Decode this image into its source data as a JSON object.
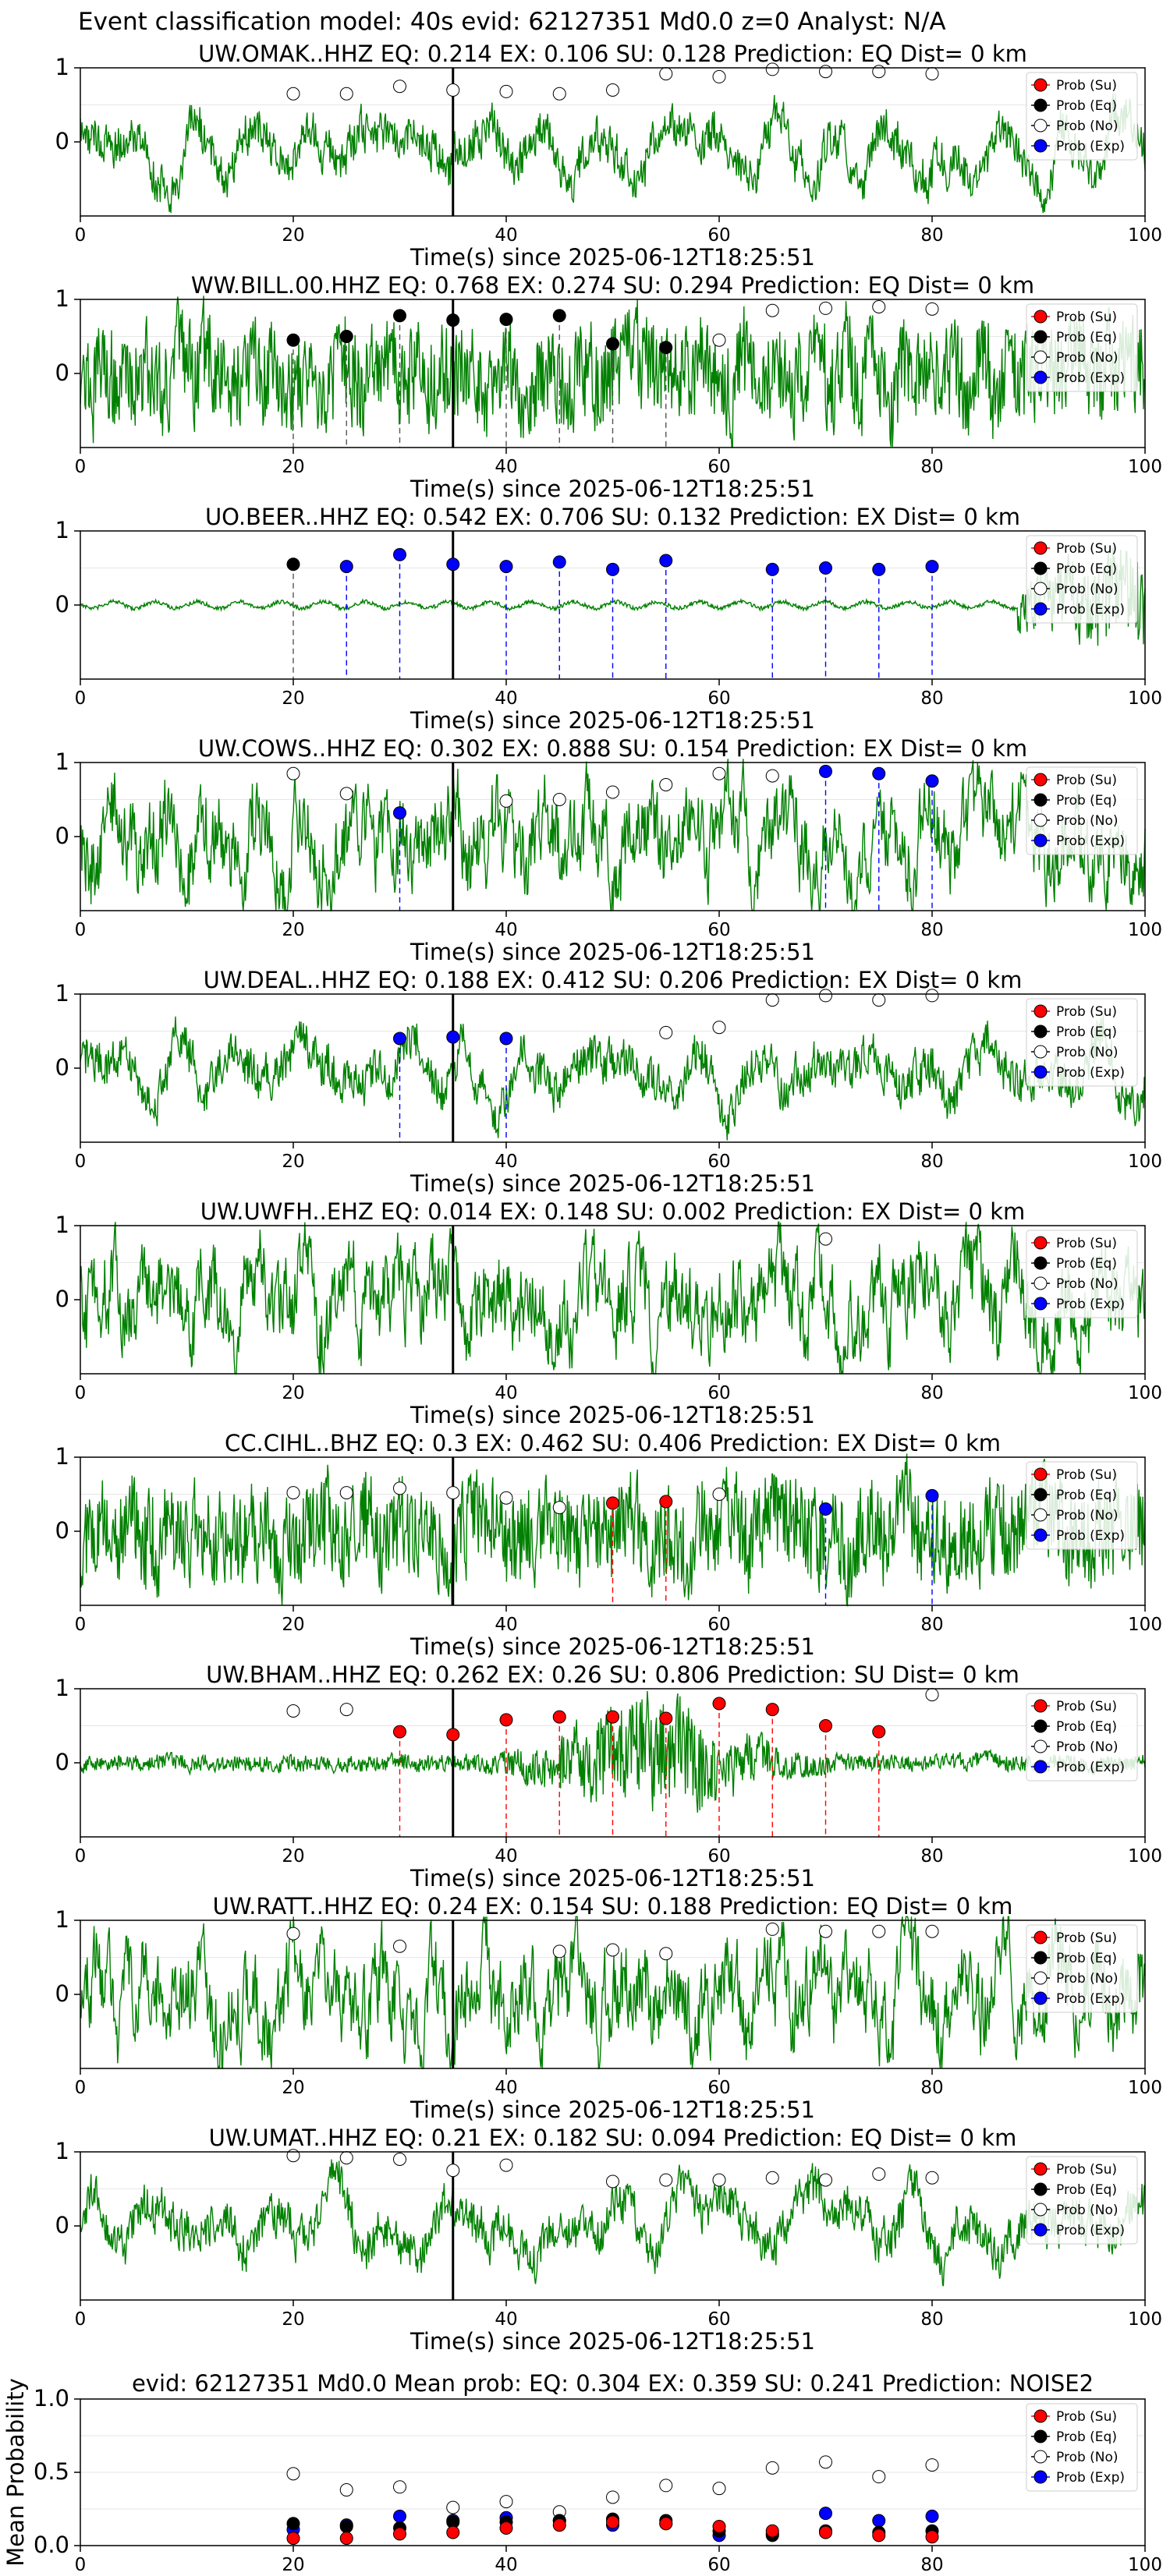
{
  "suptitle": "Event classification model: 40s evid: 62127351 Md0.0 z=0 Analyst: N/A",
  "colors": {
    "wave": "#008000",
    "su": "#ff0000",
    "eq": "#000000",
    "no": "#ffffff",
    "exp": "#0000ff",
    "pick": "#000000"
  },
  "legend_labels": [
    "Prob (Su)",
    "Prob (Eq)",
    "Prob (No)",
    "Prob (Exp)"
  ],
  "chart_data": [
    {
      "type": "line",
      "title": "UW.OMAK..HHZ   EQ: 0.214  EX: 0.106  SU: 0.128   Prediction: EQ    Dist= 0 km",
      "xlabel": "Time(s) since 2025-06-12T18:25:51",
      "xlim": [
        0,
        100
      ],
      "ylim": [
        -1,
        1
      ],
      "yticks": [
        "1",
        "0"
      ],
      "xticks": [
        "0",
        "20",
        "40",
        "60",
        "80",
        "100"
      ],
      "pick_time": 35,
      "amp_style": "lowfreq",
      "prob_points": [
        {
          "x": 20,
          "y": 0.65,
          "cls": "no"
        },
        {
          "x": 25,
          "y": 0.65,
          "cls": "no"
        },
        {
          "x": 30,
          "y": 0.75,
          "cls": "no"
        },
        {
          "x": 35,
          "y": 0.7,
          "cls": "no"
        },
        {
          "x": 40,
          "y": 0.68,
          "cls": "no"
        },
        {
          "x": 45,
          "y": 0.65,
          "cls": "no"
        },
        {
          "x": 50,
          "y": 0.7,
          "cls": "no"
        },
        {
          "x": 55,
          "y": 0.92,
          "cls": "no"
        },
        {
          "x": 60,
          "y": 0.88,
          "cls": "no"
        },
        {
          "x": 65,
          "y": 0.98,
          "cls": "no"
        },
        {
          "x": 70,
          "y": 0.95,
          "cls": "no"
        },
        {
          "x": 75,
          "y": 0.95,
          "cls": "no"
        },
        {
          "x": 80,
          "y": 0.92,
          "cls": "no"
        }
      ]
    },
    {
      "type": "line",
      "title": "WW.BILL.00.HHZ   EQ: 0.768  EX: 0.274  SU: 0.294   Prediction: EQ    Dist= 0 km",
      "xlabel": "Time(s) since 2025-06-12T18:25:51",
      "xlim": [
        0,
        100
      ],
      "ylim": [
        -1,
        1
      ],
      "yticks": [
        "1",
        "0"
      ],
      "xticks": [
        "0",
        "20",
        "40",
        "60",
        "80",
        "100"
      ],
      "pick_time": 35,
      "amp_style": "noisy",
      "prob_points": [
        {
          "x": 20,
          "y": 0.45,
          "cls": "eq"
        },
        {
          "x": 25,
          "y": 0.5,
          "cls": "eq"
        },
        {
          "x": 30,
          "y": 0.78,
          "cls": "eq"
        },
        {
          "x": 35,
          "y": 0.72,
          "cls": "eq"
        },
        {
          "x": 40,
          "y": 0.73,
          "cls": "eq"
        },
        {
          "x": 45,
          "y": 0.78,
          "cls": "eq"
        },
        {
          "x": 50,
          "y": 0.4,
          "cls": "eq"
        },
        {
          "x": 55,
          "y": 0.35,
          "cls": "eq"
        },
        {
          "x": 60,
          "y": 0.45,
          "cls": "no"
        },
        {
          "x": 65,
          "y": 0.85,
          "cls": "no"
        },
        {
          "x": 70,
          "y": 0.88,
          "cls": "no"
        },
        {
          "x": 75,
          "y": 0.9,
          "cls": "no"
        },
        {
          "x": 80,
          "y": 0.87,
          "cls": "no"
        }
      ]
    },
    {
      "type": "line",
      "title": "UO.BEER..HHZ   EQ: 0.542  EX: 0.706  SU: 0.132   Prediction: EX    Dist= 0 km",
      "xlabel": "Time(s) since 2025-06-12T18:25:51",
      "xlim": [
        0,
        100
      ],
      "ylim": [
        -1,
        1
      ],
      "yticks": [
        "1",
        "0"
      ],
      "xticks": [
        "0",
        "20",
        "40",
        "60",
        "80",
        "100"
      ],
      "pick_time": 35,
      "amp_style": "quiet",
      "prob_points": [
        {
          "x": 20,
          "y": 0.55,
          "cls": "eq"
        },
        {
          "x": 25,
          "y": 0.52,
          "cls": "exp"
        },
        {
          "x": 30,
          "y": 0.68,
          "cls": "exp"
        },
        {
          "x": 35,
          "y": 0.55,
          "cls": "exp"
        },
        {
          "x": 40,
          "y": 0.52,
          "cls": "exp"
        },
        {
          "x": 45,
          "y": 0.58,
          "cls": "exp"
        },
        {
          "x": 50,
          "y": 0.48,
          "cls": "exp"
        },
        {
          "x": 55,
          "y": 0.6,
          "cls": "exp"
        },
        {
          "x": 65,
          "y": 0.48,
          "cls": "exp"
        },
        {
          "x": 70,
          "y": 0.5,
          "cls": "exp"
        },
        {
          "x": 75,
          "y": 0.48,
          "cls": "exp"
        },
        {
          "x": 80,
          "y": 0.52,
          "cls": "exp"
        }
      ]
    },
    {
      "type": "line",
      "title": "UW.COWS..HHZ   EQ: 0.302  EX: 0.888  SU: 0.154   Prediction: EX    Dist= 0 km",
      "xlabel": "Time(s) since 2025-06-12T18:25:51",
      "xlim": [
        0,
        100
      ],
      "ylim": [
        -1,
        1
      ],
      "yticks": [
        "1",
        "0"
      ],
      "xticks": [
        "0",
        "20",
        "40",
        "60",
        "80",
        "100"
      ],
      "pick_time": 35,
      "amp_style": "medium",
      "prob_points": [
        {
          "x": 20,
          "y": 0.85,
          "cls": "no"
        },
        {
          "x": 25,
          "y": 0.58,
          "cls": "no"
        },
        {
          "x": 30,
          "y": 0.32,
          "cls": "exp"
        },
        {
          "x": 40,
          "y": 0.48,
          "cls": "no"
        },
        {
          "x": 45,
          "y": 0.5,
          "cls": "no"
        },
        {
          "x": 50,
          "y": 0.6,
          "cls": "no"
        },
        {
          "x": 55,
          "y": 0.7,
          "cls": "no"
        },
        {
          "x": 60,
          "y": 0.85,
          "cls": "no"
        },
        {
          "x": 65,
          "y": 0.82,
          "cls": "no"
        },
        {
          "x": 70,
          "y": 0.88,
          "cls": "exp"
        },
        {
          "x": 75,
          "y": 0.85,
          "cls": "exp"
        },
        {
          "x": 80,
          "y": 0.75,
          "cls": "exp"
        }
      ]
    },
    {
      "type": "line",
      "title": "UW.DEAL..HHZ   EQ: 0.188  EX: 0.412  SU: 0.206   Prediction: EX    Dist= 0 km",
      "xlabel": "Time(s) since 2025-06-12T18:25:51",
      "xlim": [
        0,
        100
      ],
      "ylim": [
        -1,
        1
      ],
      "yticks": [
        "1",
        "0"
      ],
      "xticks": [
        "0",
        "20",
        "40",
        "60",
        "80",
        "100"
      ],
      "pick_time": 35,
      "amp_style": "lowfreq",
      "prob_points": [
        {
          "x": 30,
          "y": 0.4,
          "cls": "exp"
        },
        {
          "x": 35,
          "y": 0.42,
          "cls": "exp"
        },
        {
          "x": 40,
          "y": 0.4,
          "cls": "exp"
        },
        {
          "x": 55,
          "y": 0.48,
          "cls": "no"
        },
        {
          "x": 60,
          "y": 0.55,
          "cls": "no"
        },
        {
          "x": 65,
          "y": 0.92,
          "cls": "no"
        },
        {
          "x": 70,
          "y": 0.98,
          "cls": "no"
        },
        {
          "x": 75,
          "y": 0.92,
          "cls": "no"
        },
        {
          "x": 80,
          "y": 0.98,
          "cls": "no"
        }
      ]
    },
    {
      "type": "line",
      "title": "UW.UWFH..EHZ   EQ: 0.014  EX: 0.148  SU: 0.002   Prediction: EX    Dist= 0 km",
      "xlabel": "Time(s) since 2025-06-12T18:25:51",
      "xlim": [
        0,
        100
      ],
      "ylim": [
        -1,
        1
      ],
      "yticks": [
        "1",
        "0"
      ],
      "xticks": [
        "0",
        "20",
        "40",
        "60",
        "80",
        "100"
      ],
      "pick_time": 35,
      "amp_style": "medium",
      "prob_points": [
        {
          "x": 70,
          "y": 0.82,
          "cls": "no"
        }
      ]
    },
    {
      "type": "line",
      "title": "CC.CIHL..BHZ   EQ: 0.3  EX: 0.462  SU: 0.406   Prediction: EX    Dist= 0 km",
      "xlabel": "Time(s) since 2025-06-12T18:25:51",
      "xlim": [
        0,
        100
      ],
      "ylim": [
        -1,
        1
      ],
      "yticks": [
        "1",
        "0"
      ],
      "xticks": [
        "0",
        "20",
        "40",
        "60",
        "80",
        "100"
      ],
      "pick_time": 35,
      "amp_style": "noisy",
      "prob_points": [
        {
          "x": 20,
          "y": 0.52,
          "cls": "no"
        },
        {
          "x": 25,
          "y": 0.52,
          "cls": "no"
        },
        {
          "x": 30,
          "y": 0.58,
          "cls": "no"
        },
        {
          "x": 35,
          "y": 0.52,
          "cls": "no"
        },
        {
          "x": 40,
          "y": 0.45,
          "cls": "no"
        },
        {
          "x": 45,
          "y": 0.32,
          "cls": "no"
        },
        {
          "x": 50,
          "y": 0.38,
          "cls": "su"
        },
        {
          "x": 55,
          "y": 0.4,
          "cls": "su"
        },
        {
          "x": 60,
          "y": 0.5,
          "cls": "no"
        },
        {
          "x": 70,
          "y": 0.3,
          "cls": "exp"
        },
        {
          "x": 80,
          "y": 0.48,
          "cls": "exp"
        }
      ]
    },
    {
      "type": "line",
      "title": "UW.BHAM..HHZ   EQ: 0.262  EX: 0.26  SU: 0.806   Prediction: SU    Dist= 0 km",
      "xlabel": "Time(s) since 2025-06-12T18:25:51",
      "xlim": [
        0,
        100
      ],
      "ylim": [
        -1,
        1
      ],
      "yticks": [
        "1",
        "0"
      ],
      "xticks": [
        "0",
        "20",
        "40",
        "60",
        "80",
        "100"
      ],
      "pick_time": 35,
      "amp_style": "burst",
      "prob_points": [
        {
          "x": 20,
          "y": 0.7,
          "cls": "no"
        },
        {
          "x": 25,
          "y": 0.72,
          "cls": "no"
        },
        {
          "x": 30,
          "y": 0.42,
          "cls": "su"
        },
        {
          "x": 35,
          "y": 0.38,
          "cls": "su"
        },
        {
          "x": 40,
          "y": 0.58,
          "cls": "su"
        },
        {
          "x": 45,
          "y": 0.62,
          "cls": "su"
        },
        {
          "x": 50,
          "y": 0.62,
          "cls": "su"
        },
        {
          "x": 55,
          "y": 0.6,
          "cls": "su"
        },
        {
          "x": 60,
          "y": 0.8,
          "cls": "su"
        },
        {
          "x": 65,
          "y": 0.72,
          "cls": "su"
        },
        {
          "x": 70,
          "y": 0.5,
          "cls": "su"
        },
        {
          "x": 75,
          "y": 0.42,
          "cls": "su"
        },
        {
          "x": 80,
          "y": 0.92,
          "cls": "no"
        }
      ]
    },
    {
      "type": "line",
      "title": "UW.RATT..HHZ   EQ: 0.24  EX: 0.154  SU: 0.188   Prediction: EQ    Dist= 0 km",
      "xlabel": "Time(s) since 2025-06-12T18:25:51",
      "xlim": [
        0,
        100
      ],
      "ylim": [
        -1,
        1
      ],
      "yticks": [
        "1",
        "0"
      ],
      "xticks": [
        "0",
        "20",
        "40",
        "60",
        "80",
        "100"
      ],
      "pick_time": 35,
      "amp_style": "medium",
      "prob_points": [
        {
          "x": 20,
          "y": 0.82,
          "cls": "no"
        },
        {
          "x": 30,
          "y": 0.65,
          "cls": "no"
        },
        {
          "x": 45,
          "y": 0.58,
          "cls": "no"
        },
        {
          "x": 50,
          "y": 0.6,
          "cls": "no"
        },
        {
          "x": 55,
          "y": 0.55,
          "cls": "no"
        },
        {
          "x": 65,
          "y": 0.88,
          "cls": "no"
        },
        {
          "x": 70,
          "y": 0.85,
          "cls": "no"
        },
        {
          "x": 75,
          "y": 0.85,
          "cls": "no"
        },
        {
          "x": 80,
          "y": 0.85,
          "cls": "no"
        }
      ]
    },
    {
      "type": "line",
      "title": "UW.UMAT..HHZ   EQ: 0.21  EX: 0.182  SU: 0.094   Prediction: EQ    Dist= 0 km",
      "xlabel": "Time(s) since 2025-06-12T18:25:51",
      "xlim": [
        0,
        100
      ],
      "ylim": [
        -1,
        1
      ],
      "yticks": [
        "1",
        "0"
      ],
      "xticks": [
        "0",
        "20",
        "40",
        "60",
        "80",
        "100"
      ],
      "pick_time": 35,
      "amp_style": "lowfreq",
      "prob_points": [
        {
          "x": 20,
          "y": 0.95,
          "cls": "no"
        },
        {
          "x": 25,
          "y": 0.92,
          "cls": "no"
        },
        {
          "x": 30,
          "y": 0.9,
          "cls": "no"
        },
        {
          "x": 35,
          "y": 0.75,
          "cls": "no"
        },
        {
          "x": 40,
          "y": 0.82,
          "cls": "no"
        },
        {
          "x": 50,
          "y": 0.6,
          "cls": "no"
        },
        {
          "x": 55,
          "y": 0.62,
          "cls": "no"
        },
        {
          "x": 60,
          "y": 0.62,
          "cls": "no"
        },
        {
          "x": 65,
          "y": 0.65,
          "cls": "no"
        },
        {
          "x": 70,
          "y": 0.62,
          "cls": "no"
        },
        {
          "x": 75,
          "y": 0.7,
          "cls": "no"
        },
        {
          "x": 80,
          "y": 0.65,
          "cls": "no"
        }
      ]
    },
    {
      "type": "scatter",
      "title": "evid: 62127351   Md0.0   Mean prob:   EQ: 0.304  EX: 0.359  SU: 0.241   Prediction: NOISE2",
      "ylabel": "Mean Probability",
      "xlim": [
        0,
        100
      ],
      "ylim": [
        0,
        1
      ],
      "yticks": [
        "1.0",
        "0.5",
        "0.0"
      ],
      "xticks": [
        "0",
        "20",
        "40",
        "60",
        "80",
        "100"
      ],
      "x": [
        20,
        25,
        30,
        35,
        40,
        45,
        50,
        55,
        60,
        65,
        70,
        75,
        80
      ],
      "series": [
        {
          "cls": "no",
          "values": [
            0.49,
            0.38,
            0.4,
            0.26,
            0.3,
            0.23,
            0.33,
            0.41,
            0.39,
            0.53,
            0.57,
            0.47,
            0.55
          ]
        },
        {
          "cls": "exp",
          "values": [
            0.11,
            0.14,
            0.2,
            0.17,
            0.19,
            0.17,
            0.14,
            0.15,
            0.07,
            0.08,
            0.22,
            0.17,
            0.2
          ]
        },
        {
          "cls": "eq",
          "values": [
            0.15,
            0.13,
            0.12,
            0.16,
            0.16,
            0.17,
            0.18,
            0.17,
            0.1,
            0.07,
            0.1,
            0.09,
            0.1
          ]
        },
        {
          "cls": "su",
          "values": [
            0.05,
            0.05,
            0.08,
            0.09,
            0.12,
            0.14,
            0.16,
            0.15,
            0.13,
            0.1,
            0.09,
            0.07,
            0.06
          ]
        }
      ]
    }
  ]
}
